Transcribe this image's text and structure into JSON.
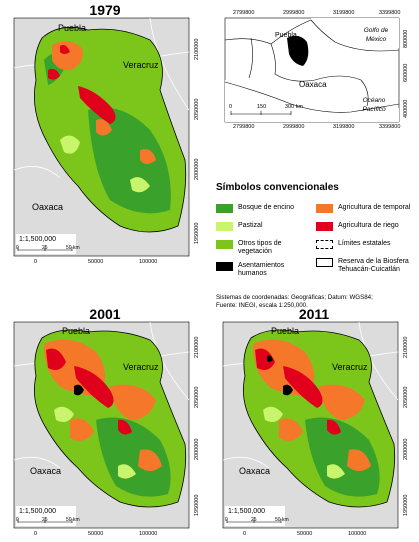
{
  "colors": {
    "background_gray": "#dcdcdc",
    "bosque": "#3aa22a",
    "pastizal": "#c9f56c",
    "otros": "#7cc61c",
    "asentamientos": "#000000",
    "temporal": "#f5782a",
    "riego": "#e1001c"
  },
  "maps": [
    {
      "year": "1979",
      "labels": {
        "puebla": "Puebla",
        "veracruz": "Veracruz",
        "oaxaca": "Oaxaca"
      },
      "scale": "1:1,500,000",
      "scalebar": {
        "zero": "0",
        "mid": "25",
        "end": "50 km"
      },
      "xticks": [
        "0",
        "50000",
        "100000"
      ],
      "yticks": [
        "2100000",
        "2050000",
        "2000000",
        "1950000"
      ]
    },
    {
      "year": "2001",
      "labels": {
        "puebla": "Puebla",
        "veracruz": "Veracruz",
        "oaxaca": "Oaxaca"
      },
      "scale": "1:1,500,000",
      "scalebar": {
        "zero": "0",
        "mid": "25",
        "end": "50 km"
      },
      "xticks": [
        "0",
        "50000",
        "100000"
      ],
      "yticks": [
        "2100000",
        "2050000",
        "2000000",
        "1950000"
      ]
    },
    {
      "year": "2011",
      "labels": {
        "puebla": "Puebla",
        "veracruz": "Veracruz",
        "oaxaca": "Oaxaca"
      },
      "scale": "1:1,500,000",
      "scalebar": {
        "zero": "0",
        "mid": "25",
        "end": "50 km"
      },
      "xticks": [
        "0",
        "50000",
        "100000"
      ],
      "yticks": [
        "2100000",
        "2050000",
        "2000000",
        "1950000"
      ]
    }
  ],
  "locator": {
    "top_ticks": [
      "2799800",
      "2999800",
      "3199800",
      "3399800"
    ],
    "bottom_ticks": [
      "2799800",
      "2999800",
      "3199800",
      "3399800"
    ],
    "right_ticks": [
      "800000",
      "600000",
      "400000"
    ],
    "labels": {
      "puebla": "Puebla",
      "oaxaca": "Oaxaca",
      "golfo": "Golfo de México",
      "oceano": "Océano Pacífico"
    },
    "scalebar": {
      "zero": "0",
      "mid": "150",
      "end": "300 km"
    }
  },
  "legend": {
    "title": "Símbolos convencionales",
    "items": [
      {
        "label": "Bosque de encino",
        "color": "#3aa22a"
      },
      {
        "label": "Agricultura de temporal",
        "color": "#f5782a"
      },
      {
        "label": "Pastizal",
        "color": "#c9f56c"
      },
      {
        "label": "Agricultura de riego",
        "color": "#e1001c"
      },
      {
        "label": "Otros tipos de vegetación",
        "color": "#7cc61c"
      },
      {
        "label": "Límites estatales",
        "color": "#ffffff"
      },
      {
        "label": "Asentamientos humanos",
        "color": "#000000"
      },
      {
        "label": "Reserva de la Biosfera Tehuacán-Cuicatlán",
        "color": "#ffffff"
      }
    ]
  },
  "source_note": {
    "line1": "Sistemas de coordenadas: Geográficas; Datum: WGS84;",
    "line2": "Fuente: INEGI, escala 1:250,000."
  }
}
